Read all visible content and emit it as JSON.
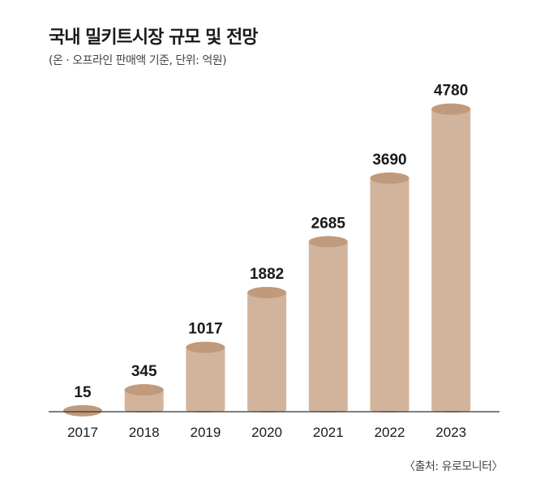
{
  "chart_data": {
    "type": "bar",
    "title": "국내 밀키트시장 규모 및 전망",
    "subtitle": "(온 · 오프라인 판매액 기준, 단위: 억원)",
    "source": "〈출처: 유로모니터〉",
    "categories": [
      "2017",
      "2018",
      "2019",
      "2020",
      "2021",
      "2022",
      "2023"
    ],
    "values": [
      15,
      345,
      1017,
      1882,
      2685,
      3690,
      4780
    ],
    "value_labels": [
      "15",
      "345",
      "1017",
      "1882",
      "2685",
      "3690",
      "4780"
    ],
    "xlabel": "",
    "ylabel": "",
    "ylim": [
      0,
      5000
    ],
    "grid": false,
    "legend": "none",
    "colors": {
      "bar_side": "#d2b49c",
      "bar_top": "#c09a7c",
      "axis": "#333333"
    }
  }
}
